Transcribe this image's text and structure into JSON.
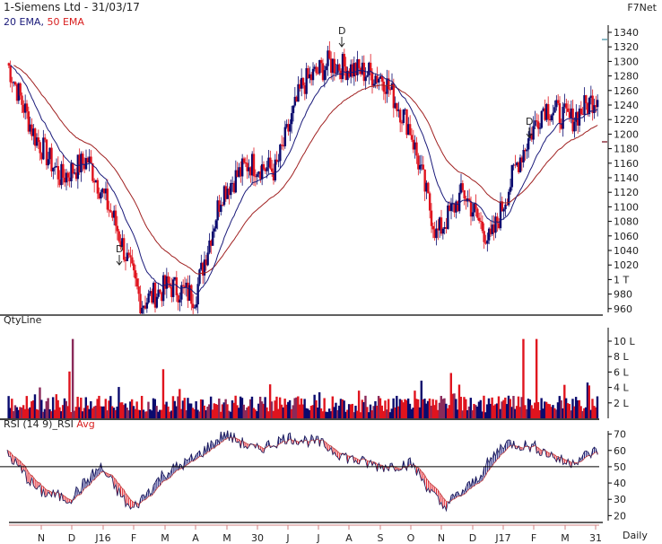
{
  "header": {
    "title": "1-Siemens Ltd - 31/03/17",
    "legend_ema20": "20 EMA",
    "legend_sep": ", ",
    "legend_ema50": "50 EMA",
    "brand": "F7Net"
  },
  "panels": {
    "volume_label": "QtyLine",
    "rsi_label": "RSI (14 9)_RSI",
    "rsi_avg_label": "Avg"
  },
  "footer": {
    "period": "Daily"
  },
  "colors": {
    "up": "#0a0a6e",
    "down": "#e0141e",
    "mixed": "#8a2a5a",
    "ema20": "#1a1a7a",
    "ema50": "#a02020",
    "axis": "#000000",
    "xtick": "#d08080"
  },
  "chart_data": [
    {
      "type": "candlestick",
      "title": "1-Siemens Ltd - 31/03/17",
      "series": [
        {
          "name": "20 EMA",
          "color": "#1a1a7a"
        },
        {
          "name": "50 EMA",
          "color": "#a02020"
        }
      ],
      "y_ticks": [
        "1340",
        "1320",
        "1300",
        "1280",
        "1260",
        "1240",
        "1220",
        "1200",
        "1180",
        "1160",
        "1140",
        "1120",
        "1100",
        "1080",
        "1060",
        "1040",
        "1020",
        "1 T",
        "980",
        "960"
      ],
      "ylim": [
        950,
        1350
      ],
      "annotations": [
        "D",
        "D",
        "D"
      ],
      "markers": {
        "high_marker": 1322,
        "low_marker": 1183
      },
      "approx_close_path": [
        {
          "x": "Oct-15",
          "y": 1300
        },
        {
          "x": "N",
          "y": 1200
        },
        {
          "x": "D",
          "y": 1140
        },
        {
          "x": "mid-D",
          "y": 1165
        },
        {
          "x": "J16",
          "y": 1080
        },
        {
          "x": "late-J",
          "y": 965
        },
        {
          "x": "F",
          "y": 990
        },
        {
          "x": "M",
          "y": 975
        },
        {
          "x": "A",
          "y": 1120
        },
        {
          "x": "M",
          "y": 1160
        },
        {
          "x": "30",
          "y": 1150
        },
        {
          "x": "J",
          "y": 1270
        },
        {
          "x": "J",
          "y": 1300
        },
        {
          "x": "A",
          "y": 1290
        },
        {
          "x": "S",
          "y": 1280
        },
        {
          "x": "O",
          "y": 1210
        },
        {
          "x": "N",
          "y": 1060
        },
        {
          "x": "mid-N",
          "y": 1120
        },
        {
          "x": "D",
          "y": 1050
        },
        {
          "x": "J17",
          "y": 1160
        },
        {
          "x": "F",
          "y": 1240
        },
        {
          "x": "M",
          "y": 1220
        },
        {
          "x": "31",
          "y": 1255
        }
      ]
    },
    {
      "type": "bar",
      "title": "QtyLine",
      "y_ticks": [
        "10 L",
        "8 L",
        "6 L",
        "4 L",
        "2 L"
      ],
      "ylim": [
        0,
        12
      ],
      "notable_spikes": [
        {
          "x": "late-J16",
          "value": 10.5
        },
        {
          "x": "J17",
          "value": 10.5
        },
        {
          "x": "F17",
          "value": 10.5
        },
        {
          "x": "mid-J",
          "value": 6.5
        },
        {
          "x": "O",
          "value": 6.0
        }
      ],
      "typical_range": [
        1,
        3
      ]
    },
    {
      "type": "line",
      "title": "RSI (14 9)_RSI Avg",
      "y_ticks": [
        "70",
        "60",
        "50",
        "40",
        "30",
        "20"
      ],
      "ylim": [
        18,
        72
      ],
      "reference_line": 50,
      "approx_values": [
        {
          "x": "Oct-15",
          "y": 58
        },
        {
          "x": "N",
          "y": 35
        },
        {
          "x": "D",
          "y": 30
        },
        {
          "x": "mid-D",
          "y": 50
        },
        {
          "x": "J16",
          "y": 23
        },
        {
          "x": "F",
          "y": 45
        },
        {
          "x": "M",
          "y": 55
        },
        {
          "x": "A",
          "y": 70
        },
        {
          "x": "M",
          "y": 60
        },
        {
          "x": "30",
          "y": 68
        },
        {
          "x": "J",
          "y": 65
        },
        {
          "x": "A",
          "y": 55
        },
        {
          "x": "S",
          "y": 50
        },
        {
          "x": "O",
          "y": 52
        },
        {
          "x": "N",
          "y": 25
        },
        {
          "x": "D",
          "y": 40
        },
        {
          "x": "J17",
          "y": 65
        },
        {
          "x": "F",
          "y": 62
        },
        {
          "x": "M",
          "y": 52
        },
        {
          "x": "31",
          "y": 60
        }
      ]
    }
  ],
  "x_axis": {
    "labels": [
      "N",
      "D",
      "J16",
      "F",
      "M",
      "A",
      "M",
      "30",
      "J",
      "J",
      "A",
      "S",
      "O",
      "N",
      "D",
      "J17",
      "F",
      "M",
      "31"
    ],
    "positions": [
      46,
      80,
      115,
      149,
      184,
      218,
      253,
      287,
      321,
      355,
      389,
      424,
      458,
      492,
      527,
      561,
      595,
      630,
      664
    ]
  }
}
